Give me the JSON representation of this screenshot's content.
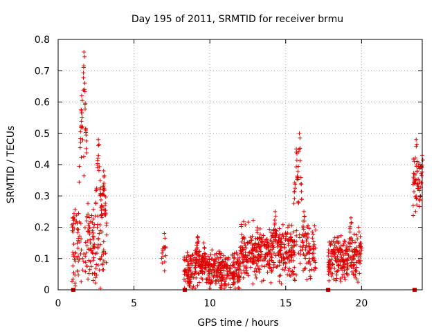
{
  "chart_data": {
    "type": "scatter",
    "title": "Day 195 of 2011, SRMTID for receiver brmu",
    "xlabel": "GPS time / hours",
    "ylabel": "SRMTID / TECUs",
    "xlim": [
      0,
      24
    ],
    "ylim": [
      0,
      0.8
    ],
    "x_ticks": [
      0,
      5,
      10,
      15,
      20
    ],
    "y_ticks": [
      0,
      0.1,
      0.2,
      0.3,
      0.4,
      0.5,
      0.6,
      0.7,
      0.8
    ],
    "x_tick_labels": [
      "0",
      "5",
      "10",
      "15",
      "20"
    ],
    "y_tick_labels": [
      "0",
      "0.1",
      "0.2",
      "0.3",
      "0.4",
      "0.5",
      "0.6",
      "0.7",
      "0.8"
    ],
    "grid": true,
    "marker": "+",
    "color": "#e00000",
    "segments": [
      {
        "x_start": 0.9,
        "x_end": 3.2,
        "seed": 11,
        "count": 260,
        "base": 0.14,
        "spread": 0.12,
        "peaks": [
          [
            1.7,
            0.76
          ],
          [
            1.55,
            0.62
          ],
          [
            2.65,
            0.48
          ],
          [
            3.0,
            0.38
          ]
        ]
      },
      {
        "x_start": 6.8,
        "x_end": 7.1,
        "seed": 5,
        "count": 14,
        "base": 0.08,
        "spread": 0.06,
        "peaks": [
          [
            7.0,
            0.18
          ]
        ]
      },
      {
        "x_start": 8.3,
        "x_end": 12.0,
        "seed": 23,
        "count": 420,
        "base": 0.06,
        "spread": 0.05,
        "peaks": [
          [
            9.2,
            0.17
          ],
          [
            9.6,
            0.15
          ]
        ]
      },
      {
        "x_start": 12.0,
        "x_end": 17.0,
        "seed": 37,
        "count": 520,
        "base": 0.12,
        "spread": 0.08,
        "peaks": [
          [
            15.9,
            0.5
          ],
          [
            15.7,
            0.45
          ],
          [
            14.3,
            0.25
          ],
          [
            16.2,
            0.25
          ]
        ]
      },
      {
        "x_start": 17.8,
        "x_end": 20.0,
        "seed": 41,
        "count": 240,
        "base": 0.1,
        "spread": 0.06,
        "peaks": [
          [
            19.3,
            0.23
          ],
          [
            19.8,
            0.2
          ]
        ]
      },
      {
        "x_start": 23.4,
        "x_end": 24.0,
        "seed": 53,
        "count": 60,
        "base": 0.33,
        "spread": 0.09,
        "peaks": [
          [
            23.6,
            0.48
          ],
          [
            24.0,
            0.43
          ]
        ]
      }
    ],
    "zero_markers": [
      1.0,
      8.35,
      17.8,
      23.5
    ]
  }
}
